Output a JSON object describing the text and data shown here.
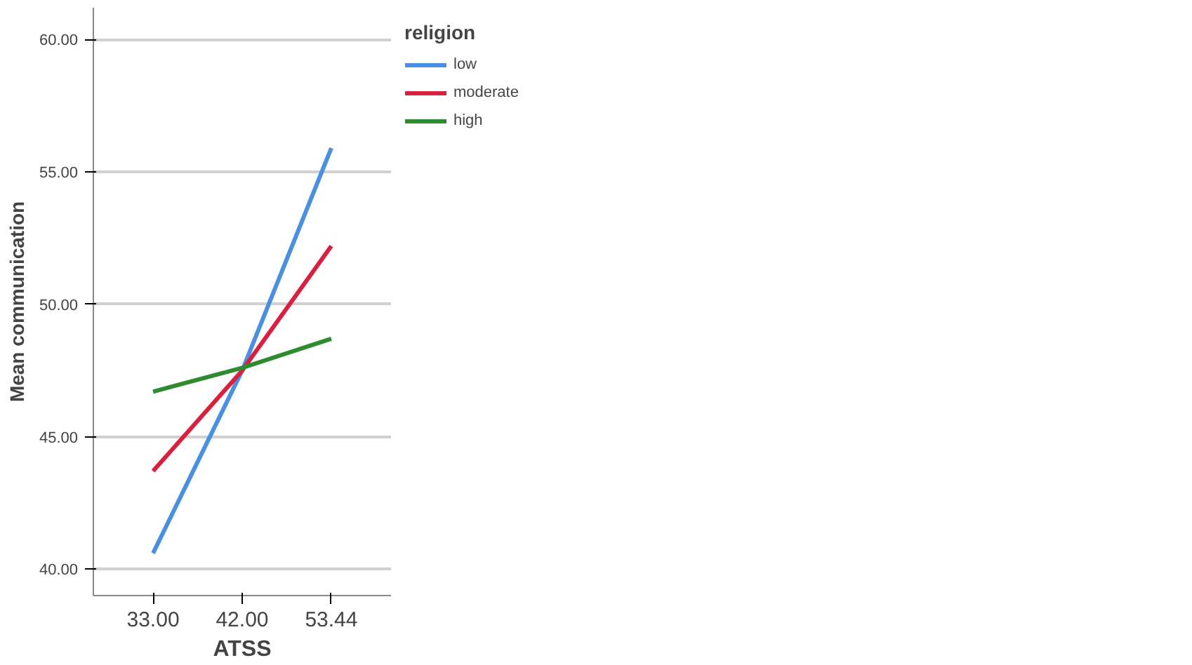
{
  "chart_data": {
    "type": "line",
    "xlabel": "ATSS",
    "ylabel": "Mean communication",
    "legend_title": "religion",
    "categories": [
      "33.00",
      "42.00",
      "53.44"
    ],
    "series": [
      {
        "name": "low",
        "color": "#4a90e2",
        "values": [
          40.6,
          47.5,
          55.9
        ]
      },
      {
        "name": "moderate",
        "color": "#d9203f",
        "values": [
          43.7,
          47.5,
          52.2
        ]
      },
      {
        "name": "high",
        "color": "#2e8b2e",
        "values": [
          46.7,
          47.6,
          48.7
        ]
      }
    ],
    "ylim": [
      39,
      61.2
    ],
    "yticks": [
      {
        "value": 40,
        "label": "40.00"
      },
      {
        "value": 45,
        "label": "45.00"
      },
      {
        "value": 50,
        "label": "50.00"
      },
      {
        "value": 55,
        "label": "55.00"
      },
      {
        "value": 60,
        "label": "60.00"
      }
    ],
    "grid": "y",
    "legend": "top right",
    "line_style": "solid",
    "marker": "none"
  }
}
